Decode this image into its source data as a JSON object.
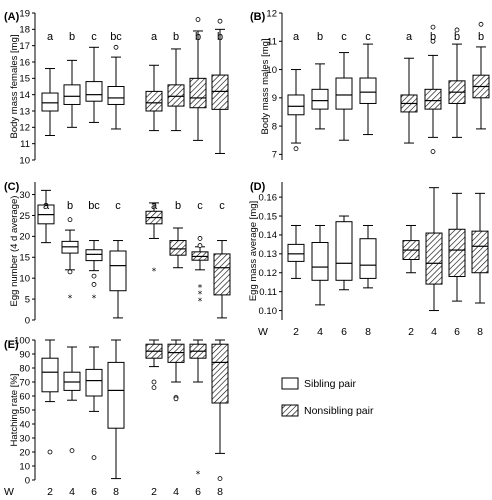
{
  "legend": {
    "sibling_label": "Sibling pair",
    "nonsibling_label": "Nonsibling pair"
  },
  "x_axis_title": "W",
  "chart_data": [
    {
      "type": "box",
      "panel": "(A)",
      "ylabel": "Body mass females [mg]",
      "ylim": [
        10,
        19
      ],
      "yticks": [
        10,
        11,
        12,
        13,
        14,
        15,
        16,
        17,
        18,
        19
      ],
      "categories": [
        "2",
        "4",
        "6",
        "8"
      ],
      "show_x_labels": false,
      "series": [
        {
          "name": "Sibling pair",
          "letters": [
            "a",
            "b",
            "c",
            "bc"
          ],
          "boxes": [
            {
              "low": 11.5,
              "q1": 13.0,
              "median": 13.5,
              "q3": 14.1,
              "high": 15.6,
              "outliers": [],
              "extremes": []
            },
            {
              "low": 12.0,
              "q1": 13.4,
              "median": 13.9,
              "q3": 14.6,
              "high": 16.1,
              "outliers": [],
              "extremes": []
            },
            {
              "low": 12.3,
              "q1": 13.6,
              "median": 14.0,
              "q3": 14.8,
              "high": 16.9,
              "outliers": [],
              "extremes": []
            },
            {
              "low": 11.9,
              "q1": 13.4,
              "median": 13.8,
              "q3": 14.5,
              "high": 16.3,
              "outliers": [
                16.9
              ],
              "extremes": []
            }
          ]
        },
        {
          "name": "Nonsibling pair",
          "letters": [
            "a",
            "b",
            "b",
            "b"
          ],
          "boxes": [
            {
              "low": 11.8,
              "q1": 13.0,
              "median": 13.5,
              "q3": 14.2,
              "high": 15.8,
              "outliers": [],
              "extremes": []
            },
            {
              "low": 11.8,
              "q1": 13.3,
              "median": 13.9,
              "q3": 14.6,
              "high": 16.8,
              "outliers": [],
              "extremes": []
            },
            {
              "low": 11.2,
              "q1": 13.2,
              "median": 13.8,
              "q3": 15.0,
              "high": 17.9,
              "outliers": [
                18.6
              ],
              "extremes": []
            },
            {
              "low": 10.4,
              "q1": 13.1,
              "median": 14.2,
              "q3": 15.2,
              "high": 18.0,
              "outliers": [
                18.5
              ],
              "extremes": []
            }
          ]
        }
      ]
    },
    {
      "type": "box",
      "panel": "(B)",
      "ylabel": "Body mass males [mg]",
      "ylim": [
        6.8,
        12
      ],
      "yticks": [
        7,
        8,
        9,
        10,
        11,
        12
      ],
      "categories": [
        "2",
        "4",
        "6",
        "8"
      ],
      "show_x_labels": false,
      "series": [
        {
          "name": "Sibling pair",
          "letters": [
            "a",
            "b",
            "c",
            "c"
          ],
          "boxes": [
            {
              "low": 7.4,
              "q1": 8.4,
              "median": 8.7,
              "q3": 9.1,
              "high": 10.0,
              "outliers": [
                7.2
              ],
              "extremes": []
            },
            {
              "low": 7.9,
              "q1": 8.6,
              "median": 8.9,
              "q3": 9.3,
              "high": 10.2,
              "outliers": [],
              "extremes": []
            },
            {
              "low": 7.5,
              "q1": 8.6,
              "median": 9.1,
              "q3": 9.7,
              "high": 10.6,
              "outliers": [],
              "extremes": []
            },
            {
              "low": 7.7,
              "q1": 8.8,
              "median": 9.2,
              "q3": 9.7,
              "high": 10.9,
              "outliers": [],
              "extremes": []
            }
          ]
        },
        {
          "name": "Nonsibling pair",
          "letters": [
            "a",
            "b",
            "b",
            "b"
          ],
          "boxes": [
            {
              "low": 7.4,
              "q1": 8.5,
              "median": 8.8,
              "q3": 9.1,
              "high": 10.4,
              "outliers": [],
              "extremes": []
            },
            {
              "low": 7.6,
              "q1": 8.6,
              "median": 8.9,
              "q3": 9.3,
              "high": 10.5,
              "outliers": [
                7.1,
                11.5,
                11.0
              ],
              "extremes": []
            },
            {
              "low": 7.6,
              "q1": 8.8,
              "median": 9.2,
              "q3": 9.6,
              "high": 10.9,
              "outliers": [
                11.4
              ],
              "extremes": []
            },
            {
              "low": 7.9,
              "q1": 9.0,
              "median": 9.4,
              "q3": 9.8,
              "high": 10.8,
              "outliers": [
                11.6
              ],
              "extremes": []
            }
          ]
        }
      ]
    },
    {
      "type": "box",
      "panel": "(C)",
      "ylabel": "Egg number (4 d average)",
      "ylim": [
        0,
        33
      ],
      "yticks": [
        0,
        5,
        10,
        15,
        20,
        25,
        30
      ],
      "categories": [
        "2",
        "4",
        "6",
        "8"
      ],
      "show_x_labels": false,
      "series": [
        {
          "name": "Sibling pair",
          "letters": [
            "a",
            "b",
            "bc",
            "c"
          ],
          "boxes": [
            {
              "low": 18.5,
              "q1": 23.0,
              "median": 25.2,
              "q3": 27.5,
              "high": 31.0,
              "outliers": [],
              "extremes": []
            },
            {
              "low": 12.0,
              "q1": 16.0,
              "median": 17.5,
              "q3": 18.8,
              "high": 21.5,
              "outliers": [
                24.0,
                11.5
              ],
              "extremes": [
                5.5
              ]
            },
            {
              "low": 11.8,
              "q1": 14.2,
              "median": 15.7,
              "q3": 16.8,
              "high": 19.0,
              "outliers": [
                10.5,
                8.5
              ],
              "extremes": [
                5.5
              ]
            },
            {
              "low": 0.5,
              "q1": 7.0,
              "median": 13.0,
              "q3": 16.5,
              "high": 19.0,
              "outliers": [],
              "extremes": []
            }
          ]
        },
        {
          "name": "Nonsibling pair",
          "letters": [
            "a",
            "b",
            "c",
            "c"
          ],
          "boxes": [
            {
              "low": 19.5,
              "q1": 23.0,
              "median": 24.5,
              "q3": 26.0,
              "high": 28.0,
              "outliers": [],
              "extremes": [
                12.0
              ]
            },
            {
              "low": 12.5,
              "q1": 15.5,
              "median": 17.0,
              "q3": 19.0,
              "high": 22.0,
              "outliers": [],
              "extremes": []
            },
            {
              "low": 12.0,
              "q1": 14.3,
              "median": 15.2,
              "q3": 16.3,
              "high": 17.5,
              "outliers": [
                19.5,
                17.8
              ],
              "extremes": [
                8.0,
                6.5,
                4.8
              ]
            },
            {
              "low": 0.5,
              "q1": 6.0,
              "median": 12.5,
              "q3": 15.8,
              "high": 19.0,
              "outliers": [],
              "extremes": []
            }
          ]
        }
      ]
    },
    {
      "type": "box",
      "panel": "(D)",
      "ylabel": "Egg mass average [mg]",
      "ylim": [
        0.095,
        0.168
      ],
      "yticks": [
        0.1,
        0.11,
        0.12,
        0.13,
        0.14,
        0.15,
        0.16
      ],
      "ytick_labels": [
        "0.10",
        "0.11",
        "0.12",
        "0.13",
        "0.14",
        "0.15",
        "0.16"
      ],
      "categories": [
        "2",
        "4",
        "6",
        "8"
      ],
      "show_x_labels": true,
      "series": [
        {
          "name": "Sibling pair",
          "letters": [],
          "boxes": [
            {
              "low": 0.117,
              "q1": 0.126,
              "median": 0.13,
              "q3": 0.135,
              "high": 0.145,
              "outliers": [],
              "extremes": []
            },
            {
              "low": 0.103,
              "q1": 0.116,
              "median": 0.123,
              "q3": 0.136,
              "high": 0.145,
              "outliers": [],
              "extremes": []
            },
            {
              "low": 0.111,
              "q1": 0.116,
              "median": 0.125,
              "q3": 0.147,
              "high": 0.15,
              "outliers": [],
              "extremes": []
            },
            {
              "low": 0.112,
              "q1": 0.117,
              "median": 0.124,
              "q3": 0.138,
              "high": 0.145,
              "outliers": [],
              "extremes": []
            }
          ]
        },
        {
          "name": "Nonsibling pair",
          "letters": [],
          "boxes": [
            {
              "low": 0.12,
              "q1": 0.127,
              "median": 0.132,
              "q3": 0.137,
              "high": 0.145,
              "outliers": [],
              "extremes": []
            },
            {
              "low": 0.1,
              "q1": 0.114,
              "median": 0.125,
              "q3": 0.141,
              "high": 0.165,
              "outliers": [],
              "extremes": []
            },
            {
              "low": 0.105,
              "q1": 0.118,
              "median": 0.132,
              "q3": 0.143,
              "high": 0.162,
              "outliers": [],
              "extremes": []
            },
            {
              "low": 0.104,
              "q1": 0.12,
              "median": 0.134,
              "q3": 0.142,
              "high": 0.162,
              "outliers": [],
              "extremes": []
            }
          ]
        }
      ]
    },
    {
      "type": "box",
      "panel": "(E)",
      "ylabel": "Hatching rate [%]",
      "ylim": [
        0,
        100
      ],
      "yticks": [
        0,
        10,
        20,
        30,
        40,
        50,
        60,
        70,
        80,
        90,
        100
      ],
      "categories": [
        "2",
        "4",
        "6",
        "8"
      ],
      "show_x_labels": true,
      "series": [
        {
          "name": "Sibling pair",
          "letters": [],
          "boxes": [
            {
              "low": 56,
              "q1": 63,
              "median": 77,
              "q3": 87,
              "high": 100,
              "outliers": [
                20
              ],
              "extremes": []
            },
            {
              "low": 57,
              "q1": 64,
              "median": 70,
              "q3": 77,
              "high": 95,
              "outliers": [
                21
              ],
              "extremes": []
            },
            {
              "low": 49,
              "q1": 60,
              "median": 71,
              "q3": 79,
              "high": 95,
              "outliers": [
                16
              ],
              "extremes": []
            },
            {
              "low": 1,
              "q1": 37,
              "median": 64,
              "q3": 84,
              "high": 100,
              "outliers": [],
              "extremes": []
            }
          ]
        },
        {
          "name": "Nonsibling pair",
          "letters": [],
          "boxes": [
            {
              "low": 81,
              "q1": 87,
              "median": 92,
              "q3": 97,
              "high": 100,
              "outliers": [
                70,
                66
              ],
              "extremes": []
            },
            {
              "low": 70,
              "q1": 84,
              "median": 91,
              "q3": 97,
              "high": 100,
              "outliers": [
                59,
                58
              ],
              "extremes": []
            },
            {
              "low": 70,
              "q1": 87,
              "median": 92,
              "q3": 97,
              "high": 100,
              "outliers": [],
              "extremes": [
                5
              ]
            },
            {
              "low": 19,
              "q1": 55,
              "median": 84,
              "q3": 97,
              "high": 100,
              "outliers": [
                1
              ],
              "extremes": []
            }
          ]
        }
      ]
    }
  ]
}
